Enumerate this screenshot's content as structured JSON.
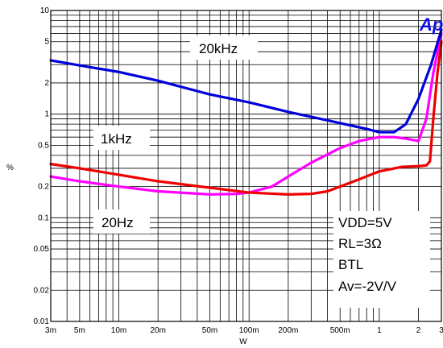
{
  "chart_data": {
    "type": "line",
    "title": "",
    "xlabel": "W",
    "ylabel": "%",
    "xscale": "log",
    "yscale": "log",
    "xlim": [
      0.003,
      3
    ],
    "ylim": [
      0.01,
      10
    ],
    "grid": true,
    "x_ticks": [
      {
        "v": 0.003,
        "label": "3m"
      },
      {
        "v": 0.005,
        "label": "5m"
      },
      {
        "v": 0.01,
        "label": "10m"
      },
      {
        "v": 0.02,
        "label": "20m"
      },
      {
        "v": 0.05,
        "label": "50m"
      },
      {
        "v": 0.1,
        "label": "100m"
      },
      {
        "v": 0.2,
        "label": "200m"
      },
      {
        "v": 0.5,
        "label": "500m"
      },
      {
        "v": 1,
        "label": "1"
      },
      {
        "v": 2,
        "label": "2"
      },
      {
        "v": 3,
        "label": "3"
      }
    ],
    "y_ticks": [
      {
        "v": 0.01,
        "label": "0.01"
      },
      {
        "v": 0.02,
        "label": "0.02"
      },
      {
        "v": 0.05,
        "label": "0.05"
      },
      {
        "v": 0.1,
        "label": "0.1"
      },
      {
        "v": 0.2,
        "label": "0.2"
      },
      {
        "v": 0.5,
        "label": "0.5"
      },
      {
        "v": 1,
        "label": "1"
      },
      {
        "v": 2,
        "label": "2"
      },
      {
        "v": 5,
        "label": "5"
      },
      {
        "v": 10,
        "label": "10"
      }
    ],
    "series": [
      {
        "name": "20kHz",
        "color": "#0000dd",
        "points": [
          [
            0.003,
            3.3
          ],
          [
            0.005,
            2.95
          ],
          [
            0.01,
            2.55
          ],
          [
            0.02,
            2.1
          ],
          [
            0.05,
            1.55
          ],
          [
            0.1,
            1.3
          ],
          [
            0.2,
            1.05
          ],
          [
            0.5,
            0.82
          ],
          [
            0.8,
            0.72
          ],
          [
            1.0,
            0.67
          ],
          [
            1.3,
            0.67
          ],
          [
            1.6,
            0.8
          ],
          [
            2.0,
            1.4
          ],
          [
            2.5,
            3.0
          ],
          [
            3.0,
            6.5
          ]
        ]
      },
      {
        "name": "1kHz",
        "color": "#ff00ff",
        "points": [
          [
            0.003,
            0.25
          ],
          [
            0.005,
            0.225
          ],
          [
            0.01,
            0.2
          ],
          [
            0.02,
            0.18
          ],
          [
            0.05,
            0.168
          ],
          [
            0.08,
            0.17
          ],
          [
            0.1,
            0.175
          ],
          [
            0.15,
            0.2
          ],
          [
            0.2,
            0.25
          ],
          [
            0.3,
            0.34
          ],
          [
            0.5,
            0.47
          ],
          [
            0.7,
            0.55
          ],
          [
            1.0,
            0.6
          ],
          [
            1.3,
            0.6
          ],
          [
            1.6,
            0.58
          ],
          [
            2.0,
            0.55
          ],
          [
            2.3,
            0.9
          ],
          [
            2.6,
            2.5
          ],
          [
            3.0,
            6.0
          ]
        ]
      },
      {
        "name": "20Hz",
        "color": "#ee0000",
        "points": [
          [
            0.003,
            0.33
          ],
          [
            0.005,
            0.3
          ],
          [
            0.01,
            0.26
          ],
          [
            0.02,
            0.225
          ],
          [
            0.05,
            0.195
          ],
          [
            0.1,
            0.175
          ],
          [
            0.2,
            0.168
          ],
          [
            0.3,
            0.17
          ],
          [
            0.4,
            0.18
          ],
          [
            0.5,
            0.2
          ],
          [
            0.7,
            0.235
          ],
          [
            1.0,
            0.28
          ],
          [
            1.5,
            0.31
          ],
          [
            2.0,
            0.315
          ],
          [
            2.3,
            0.32
          ],
          [
            2.45,
            0.35
          ],
          [
            2.6,
            0.9
          ],
          [
            2.8,
            2.5
          ],
          [
            3.0,
            5.0
          ]
        ]
      }
    ],
    "conditions": [
      "VDD=5V",
      "RL=3Ω",
      "BTL",
      "Av=-2V/V"
    ],
    "logo_text": "Ap"
  }
}
